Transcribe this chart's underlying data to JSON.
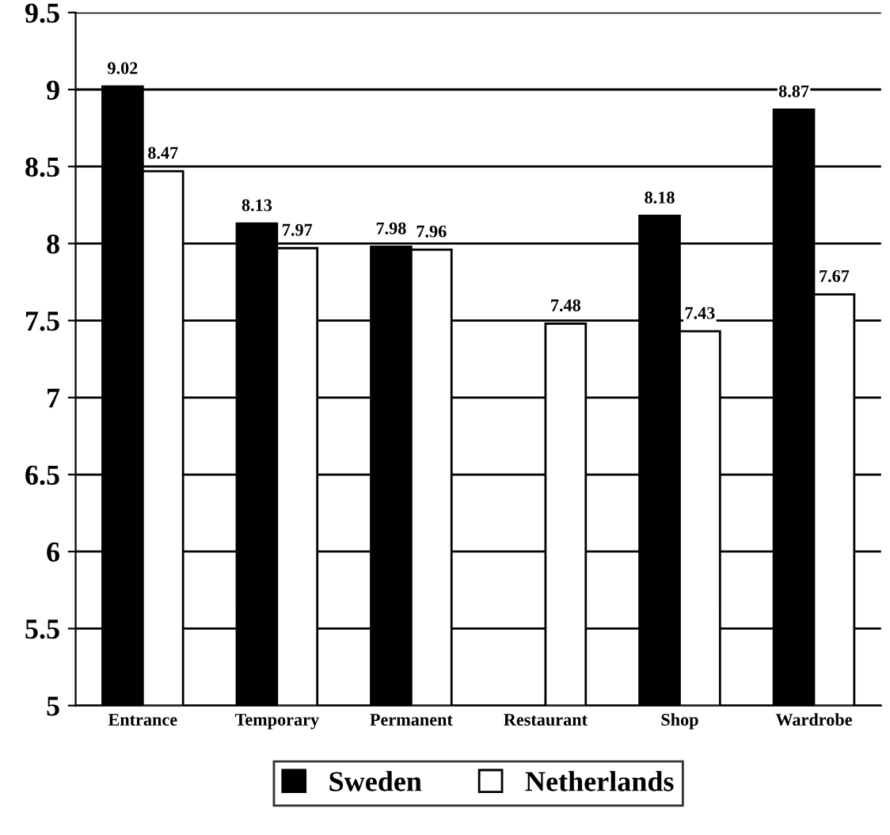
{
  "chart_data": {
    "type": "bar",
    "categories": [
      "Entrance",
      "Temporary",
      "Permanent",
      "Restaurant",
      "Shop",
      "Wardrobe"
    ],
    "series": [
      {
        "name": "Sweden",
        "color": "#000000",
        "values": [
          9.02,
          8.13,
          7.98,
          null,
          8.18,
          8.87
        ]
      },
      {
        "name": "Netherlands",
        "color": "#ffffff",
        "values": [
          8.47,
          7.97,
          7.96,
          7.48,
          7.43,
          7.67
        ]
      }
    ],
    "ylim": [
      5,
      9.5
    ],
    "yticks": [
      5,
      5.5,
      6,
      6.5,
      7,
      7.5,
      8,
      8.5,
      9,
      9.5
    ],
    "grid": "y",
    "legend": "bottom",
    "data_labels": true
  }
}
